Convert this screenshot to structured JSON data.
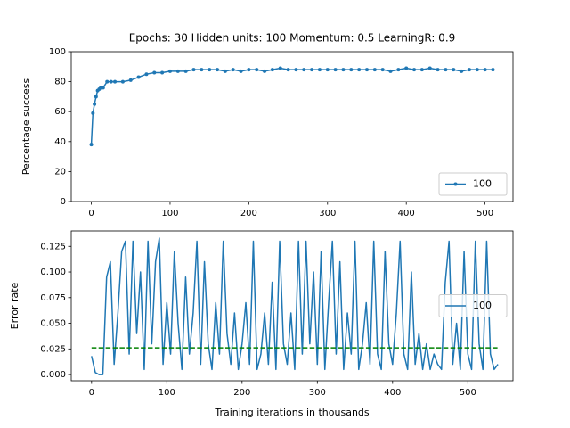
{
  "chart_data": [
    {
      "type": "line",
      "title": "Epochs: 30 Hidden units: 100 Momentum: 0.5 LearningR: 0.9",
      "ylabel": "Percentage success",
      "x": [
        0,
        2,
        4,
        6,
        8,
        10,
        12,
        15,
        20,
        25,
        30,
        40,
        50,
        60,
        70,
        80,
        90,
        100,
        110,
        120,
        130,
        140,
        150,
        160,
        170,
        180,
        190,
        200,
        210,
        220,
        230,
        240,
        250,
        260,
        270,
        280,
        290,
        300,
        310,
        320,
        330,
        340,
        350,
        360,
        370,
        380,
        390,
        400,
        410,
        420,
        430,
        440,
        450,
        460,
        470,
        480,
        490,
        500,
        510
      ],
      "series": [
        {
          "name": "100",
          "color": "#1f77b4",
          "marker": "o",
          "values": [
            38,
            59,
            65,
            70,
            74,
            75,
            76,
            76,
            80,
            80,
            80,
            80,
            81,
            83,
            85,
            86,
            86,
            87,
            87,
            87,
            88,
            88,
            88,
            88,
            87,
            88,
            87,
            88,
            88,
            87,
            88,
            89,
            88,
            88,
            88,
            88,
            88,
            88,
            88,
            88,
            88,
            88,
            88,
            88,
            88,
            87,
            88,
            89,
            88,
            88,
            89,
            88,
            88,
            88,
            87,
            88,
            88,
            88,
            88
          ]
        }
      ],
      "xlim": [
        -25.5,
        535.5
      ],
      "xticks": [
        0,
        100,
        200,
        300,
        400,
        500
      ],
      "ylim": [
        0,
        100
      ],
      "yticks": [
        0,
        20,
        40,
        60,
        80,
        100
      ],
      "legend": "lower right"
    },
    {
      "type": "line",
      "xlabel": "Training iterations in thousands",
      "ylabel": "Error rate",
      "x": [
        0,
        5,
        10,
        15,
        20,
        25,
        30,
        35,
        40,
        45,
        50,
        55,
        60,
        65,
        70,
        75,
        80,
        85,
        90,
        95,
        100,
        105,
        110,
        115,
        120,
        125,
        130,
        135,
        140,
        145,
        150,
        155,
        160,
        165,
        170,
        175,
        180,
        185,
        190,
        195,
        200,
        205,
        210,
        215,
        220,
        225,
        230,
        235,
        240,
        245,
        250,
        255,
        260,
        265,
        270,
        275,
        280,
        285,
        290,
        295,
        300,
        305,
        310,
        315,
        320,
        325,
        330,
        335,
        340,
        345,
        350,
        355,
        360,
        365,
        370,
        375,
        380,
        385,
        390,
        395,
        400,
        405,
        410,
        415,
        420,
        425,
        430,
        435,
        440,
        445,
        450,
        455,
        460,
        465,
        470,
        475,
        480,
        485,
        490,
        495,
        500,
        505,
        510,
        515,
        520,
        525,
        530,
        535,
        540
      ],
      "series": [
        {
          "name": "100",
          "color": "#1f77b4",
          "values": [
            0.018,
            0.002,
            0,
            0,
            0.095,
            0.11,
            0.01,
            0.06,
            0.12,
            0.13,
            0.02,
            0.13,
            0.04,
            0.1,
            0.005,
            0.13,
            0.03,
            0.11,
            0.133,
            0.01,
            0.07,
            0.02,
            0.12,
            0.05,
            0.005,
            0.095,
            0.02,
            0.06,
            0.13,
            0.01,
            0.11,
            0.03,
            0.005,
            0.07,
            0.02,
            0.13,
            0.04,
            0.01,
            0.06,
            0.005,
            0.03,
            0.07,
            0.01,
            0.13,
            0.005,
            0.02,
            0.06,
            0.01,
            0.09,
            0.005,
            0.13,
            0.03,
            0.01,
            0.06,
            0.005,
            0.13,
            0.02,
            0.13,
            0.03,
            0.1,
            0.01,
            0.12,
            0.005,
            0.07,
            0.13,
            0.02,
            0.11,
            0.005,
            0.06,
            0.02,
            0.13,
            0.005,
            0.03,
            0.07,
            0.01,
            0.13,
            0.02,
            0.005,
            0.12,
            0.03,
            0.01,
            0.06,
            0.13,
            0.02,
            0.005,
            0.1,
            0.01,
            0.04,
            0.005,
            0.03,
            0.005,
            0.02,
            0.01,
            0.005,
            0.09,
            0.13,
            0.01,
            0.05,
            0.005,
            0.12,
            0.02,
            0.005,
            0.13,
            0.03,
            0.005,
            0.13,
            0.02,
            0.005,
            0.01
          ]
        }
      ],
      "reference_line": {
        "value": 0.026,
        "color": "#008000",
        "style": "dashed"
      },
      "xlim": [
        -27,
        560
      ],
      "xticks": [
        0,
        100,
        200,
        300,
        400,
        500
      ],
      "ylim": [
        -0.006,
        0.14
      ],
      "yticks": [
        {
          "value": 0,
          "label": "0.000"
        },
        {
          "value": 0.025,
          "label": "0.025"
        },
        {
          "value": 0.05,
          "label": "0.050"
        },
        {
          "value": 0.075,
          "label": "0.075"
        },
        {
          "value": 0.1,
          "label": "0.100"
        },
        {
          "value": 0.125,
          "label": "0.125"
        }
      ],
      "legend": "center right"
    }
  ]
}
